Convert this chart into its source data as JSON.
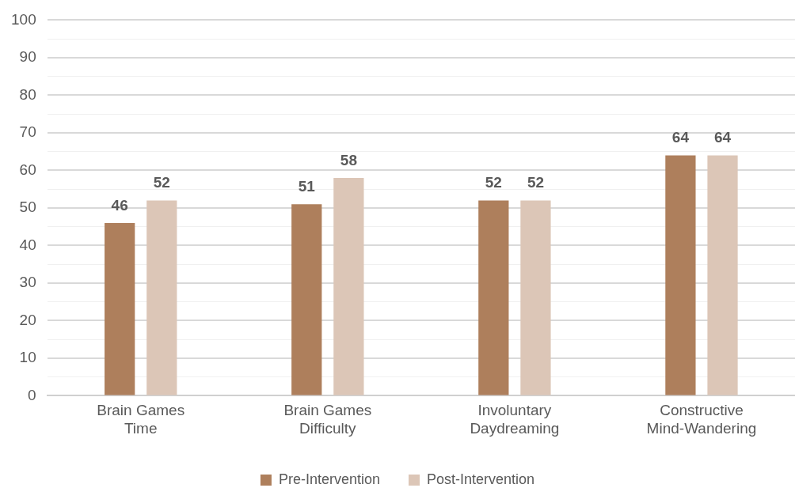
{
  "chart_data": {
    "type": "bar",
    "categories": [
      "Brain Games Time",
      "Brain Games Difficulty",
      "Involuntary Daydreaming",
      "Constructive Mind-Wandering"
    ],
    "series": [
      {
        "name": "Pre-Intervention",
        "color": "#ae7f5c",
        "values": [
          46,
          51,
          52,
          64
        ]
      },
      {
        "name": "Post-Intervention",
        "color": "#dcc6b7",
        "values": [
          52,
          58,
          52,
          64
        ]
      }
    ],
    "ylim": [
      0,
      100
    ],
    "yticks": [
      0,
      {
        "value": 5,
        "label": null
      },
      10,
      {
        "value": 15,
        "label": null
      },
      20,
      {
        "value": 25,
        "label": null
      },
      30,
      {
        "value": 35,
        "label": null
      },
      40,
      {
        "value": 45,
        "label": null
      },
      50,
      {
        "value": 55,
        "label": null
      },
      60,
      {
        "value": 65,
        "label": null
      },
      70,
      {
        "value": 75,
        "label": null
      },
      80,
      {
        "value": 85,
        "label": null
      },
      90,
      {
        "value": 95,
        "label": null
      },
      100
    ],
    "grid": "y",
    "legend": "bottom",
    "data_labels": true
  }
}
